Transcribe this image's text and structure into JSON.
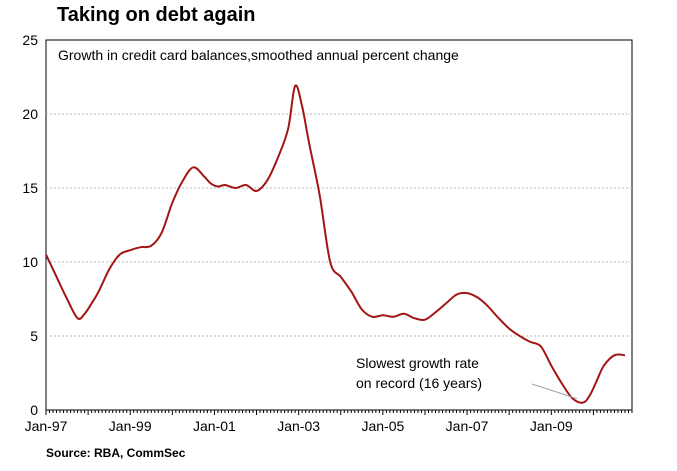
{
  "title": "Taking on debt again",
  "source": "Source: RBA, CommSec",
  "chart_data": {
    "type": "line",
    "title": "Taking on debt again",
    "subtitle": "Growth in credit card balances,smoothed annual percent change",
    "xlabel": "",
    "ylabel": "",
    "ylim": [
      0,
      25
    ],
    "yticks": [
      "0",
      "5",
      "10",
      "15",
      "20",
      "25"
    ],
    "xticks": [
      "Jan-97",
      "Jan-99",
      "Jan-01",
      "Jan-03",
      "Jan-05",
      "Jan-07",
      "Jan-09"
    ],
    "xlim": [
      "1997-01",
      "2010-12"
    ],
    "grid": true,
    "line_color": "#a31515",
    "series": [
      {
        "x": [
          "1997-01",
          "1997-04",
          "1997-07",
          "1997-10",
          "1997-12",
          "1998-02",
          "1998-04",
          "1998-07",
          "1998-10",
          "1999-01",
          "1999-04",
          "1999-07",
          "1999-10",
          "2000-01",
          "2000-04",
          "2000-07",
          "2000-10",
          "2000-12",
          "2001-02",
          "2001-04",
          "2001-07",
          "2001-10",
          "2002-01",
          "2002-04",
          "2002-07",
          "2002-10",
          "2002-12",
          "2003-02",
          "2003-04",
          "2003-07",
          "2003-10",
          "2004-01",
          "2004-04",
          "2004-07",
          "2004-10",
          "2005-01",
          "2005-04",
          "2005-07",
          "2005-10",
          "2006-01",
          "2006-04",
          "2006-07",
          "2006-10",
          "2007-01",
          "2007-04",
          "2007-07",
          "2007-10",
          "2008-01",
          "2008-04",
          "2008-07",
          "2008-10",
          "2009-01",
          "2009-04",
          "2009-07",
          "2009-10",
          "2009-12",
          "2010-02",
          "2010-04",
          "2010-07",
          "2010-10"
        ],
        "values": [
          10.5,
          9.0,
          7.5,
          6.2,
          6.5,
          7.2,
          8.0,
          9.5,
          10.5,
          10.8,
          11.0,
          11.1,
          12.0,
          14.0,
          15.5,
          16.4,
          15.8,
          15.3,
          15.1,
          15.2,
          15.0,
          15.2,
          14.8,
          15.5,
          17.0,
          19.0,
          21.9,
          20.5,
          18.0,
          14.5,
          10.0,
          9.0,
          8.0,
          6.8,
          6.3,
          6.4,
          6.3,
          6.5,
          6.2,
          6.1,
          6.6,
          7.2,
          7.8,
          7.9,
          7.6,
          7.0,
          6.2,
          5.5,
          5.0,
          4.6,
          4.3,
          3.0,
          1.8,
          0.8,
          0.5,
          1.0,
          2.0,
          3.0,
          3.7,
          3.7
        ]
      }
    ],
    "annotation": {
      "lines": [
        "Slowest growth rate",
        "on record (16 years)"
      ],
      "points_to": {
        "x": "2009-10",
        "y": 0.5
      }
    }
  }
}
